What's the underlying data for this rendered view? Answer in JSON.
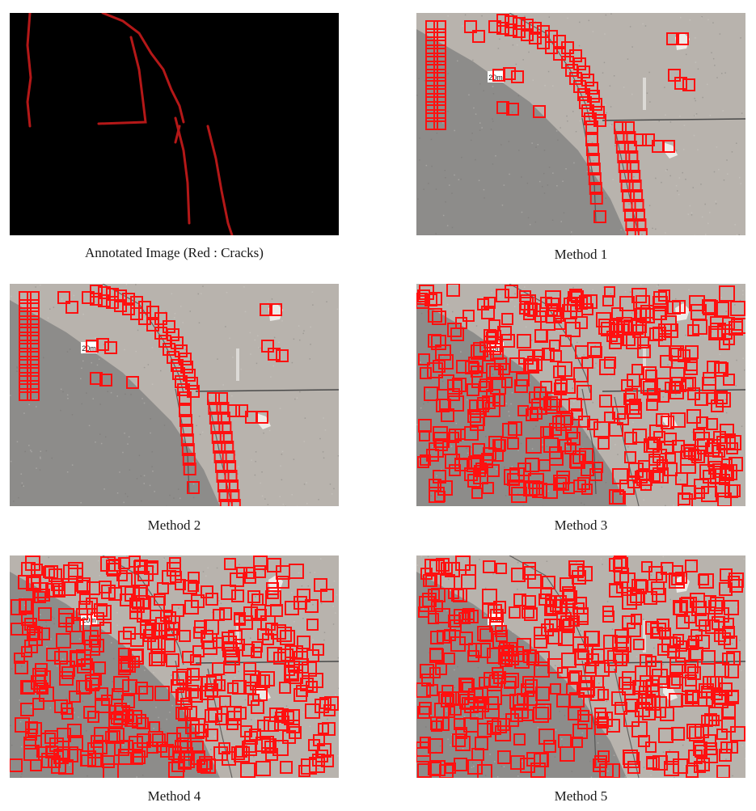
{
  "panels": [
    {
      "caption": "Annotated Image (Red : Cracks)",
      "type": "annotation"
    },
    {
      "caption": "Method 1",
      "type": "detection",
      "density": "sparse"
    },
    {
      "caption": "Method 2",
      "type": "detection",
      "density": "sparse"
    },
    {
      "caption": "Method 3",
      "type": "detection",
      "density": "dense"
    },
    {
      "caption": "Method 4",
      "type": "detection",
      "density": "dense"
    },
    {
      "caption": "Method 5",
      "type": "detection",
      "density": "dense"
    }
  ],
  "image_label": "20m",
  "colors": {
    "crack": "#c01818",
    "box": "#ff1010",
    "background_dark": "#000000",
    "surface_light": "#b8b3ad",
    "surface_dark": "#8a8a88"
  }
}
